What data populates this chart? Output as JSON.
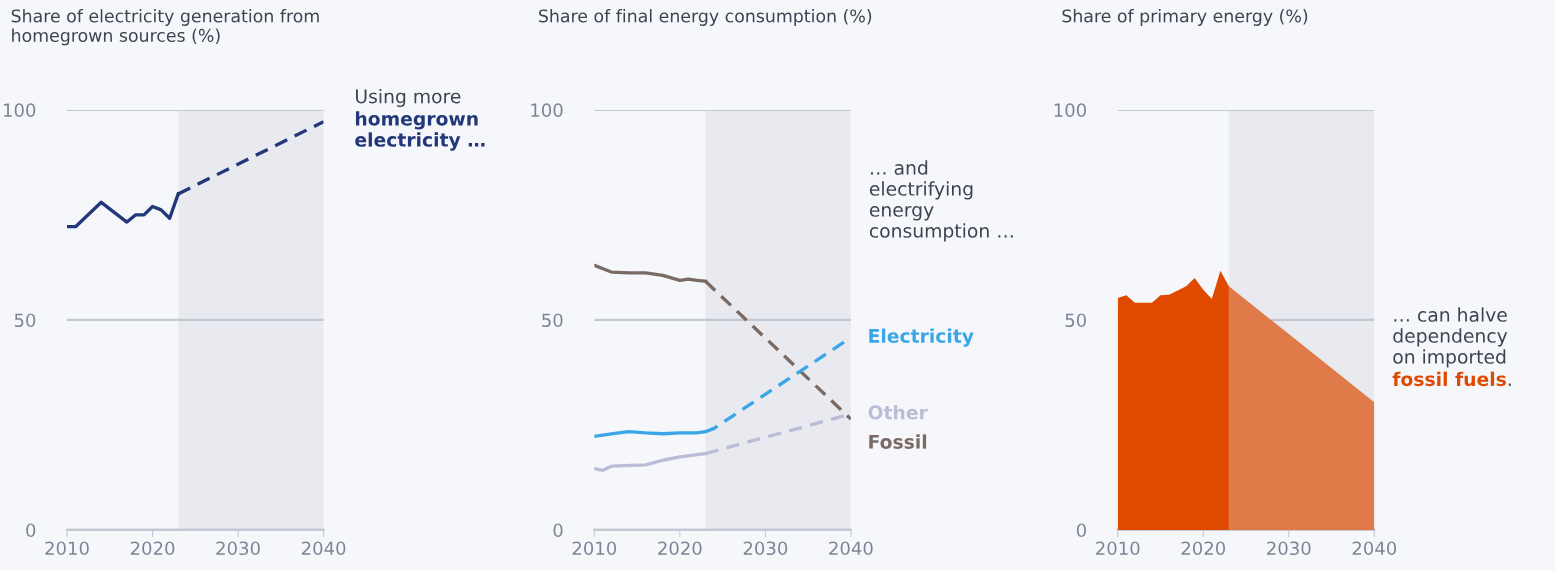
{
  "chart_data": [
    {
      "type": "line",
      "title": "Share of electricity generation from\nhomegrown sources (%)",
      "annotations": [
        "Using more",
        "homegrown\nelectricity …"
      ],
      "series": [
        {
          "color": "#22387a",
          "x": [
            2010,
            2011,
            2014,
            2017,
            2018,
            2019,
            2020,
            2021,
            2022,
            2023
          ],
          "values": [
            72.2,
            72.2,
            78,
            73.3,
            75,
            75,
            77,
            76.2,
            74.2,
            80
          ]
        },
        {
          "color": "#22387a",
          "line_style": "dashed",
          "x": [
            2023,
            2040
          ],
          "values": [
            80,
            97.2
          ]
        }
      ],
      "xlim": [
        2010,
        2040
      ],
      "xticks": [
        2010,
        2020,
        2030,
        2040
      ],
      "ylim": [
        0,
        100
      ],
      "yticks": [
        0,
        50,
        100
      ],
      "grid": "y",
      "bands": [
        {
          "axis": "x",
          "from": 2023,
          "to": 2040,
          "color": "#e9eaef"
        }
      ]
    },
    {
      "type": "line",
      "title": "Share of final energy consumption (%)",
      "annotations": [
        "… and\nelectrifying\nenergy\nconsumption …"
      ],
      "series": [
        {
          "color": "#7a6a64",
          "x": [
            2010,
            2012,
            2014,
            2016,
            2018,
            2019,
            2020,
            2021,
            2022,
            2023
          ],
          "values": [
            63.0,
            61.4,
            61.2,
            61.2,
            60.6,
            60.0,
            59.4,
            59.7,
            59.4,
            59.2
          ]
        },
        {
          "name": "Fossil",
          "color": "#7a6a64",
          "line_style": "dashed",
          "x": [
            2023,
            2040
          ],
          "values": [
            59.2,
            26.4
          ]
        },
        {
          "color": "#3aa6e8",
          "x": [
            2010,
            2012,
            2014,
            2016,
            2018,
            2020,
            2022,
            2023
          ],
          "values": [
            22.3,
            22.9,
            23.4,
            23.1,
            22.9,
            23.1,
            23.1,
            23.4
          ]
        },
        {
          "name": "Electricity",
          "color": "#3aa6e8",
          "line_style": "dashed",
          "x": [
            2023,
            2024,
            2040
          ],
          "values": [
            23.4,
            24.2,
            45.8
          ]
        },
        {
          "color": "#bdbcd6",
          "x": [
            2010,
            2011,
            2012,
            2016,
            2018,
            2020,
            2023
          ],
          "values": [
            14.6,
            14.2,
            15.2,
            15.5,
            16.6,
            17.4,
            18.2
          ]
        },
        {
          "name": "Other",
          "color": "#bdbcd6",
          "line_style": "dashed",
          "x": [
            2023,
            2040
          ],
          "values": [
            18.2,
            27.6
          ]
        }
      ],
      "xlim": [
        2010,
        2040
      ],
      "xticks": [
        2010,
        2020,
        2030,
        2040
      ],
      "ylim": [
        0,
        100
      ],
      "yticks": [
        0,
        50,
        100
      ],
      "grid": "y",
      "bands": [
        {
          "axis": "x",
          "from": 2023,
          "to": 2040,
          "color": "#e9eaef"
        }
      ]
    },
    {
      "type": "area",
      "title": "Share of primary energy (%)",
      "annotations": [
        "… can halve\ndependency\non imported",
        "fossil fuels",
        "."
      ],
      "series": [
        {
          "color": "#e04a00",
          "x": [
            2010,
            2011,
            2012,
            2014,
            2015,
            2016,
            2018,
            2019,
            2020,
            2021,
            2022,
            2023
          ],
          "values": [
            55.2,
            55.9,
            54.1,
            54.1,
            55.9,
            56.0,
            58.0,
            60.0,
            57.2,
            55.0,
            61.7,
            58.0
          ]
        },
        {
          "color": "#e07a48",
          "x": [
            2023,
            2040
          ],
          "values": [
            58.0,
            30.4
          ]
        }
      ],
      "xlim": [
        2010,
        2040
      ],
      "xticks": [
        2010,
        2020,
        2030,
        2040
      ],
      "ylim": [
        0,
        100
      ],
      "yticks": [
        0,
        50,
        100
      ],
      "grid": "y",
      "bands": [
        {
          "axis": "x",
          "from": 2023,
          "to": 2040,
          "color": "#e9eaef"
        }
      ]
    }
  ]
}
